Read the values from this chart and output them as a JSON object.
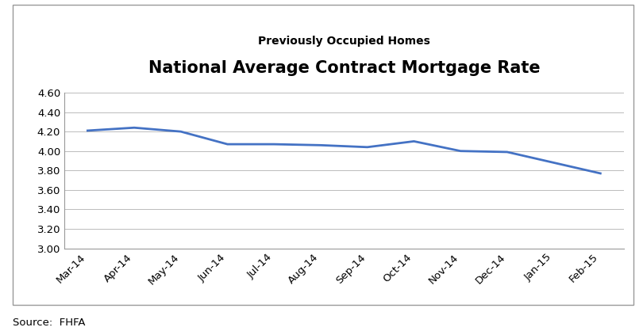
{
  "title": "National Average Contract Mortgage Rate",
  "subtitle": "Previously Occupied Homes",
  "source": "Source:  FHFA",
  "categories": [
    "Mar-14",
    "Apr-14",
    "May-14",
    "Jun-14",
    "Jul-14",
    "Aug-14",
    "Sep-14",
    "Oct-14",
    "Nov-14",
    "Dec-14",
    "Jan-15",
    "Feb-15"
  ],
  "values": [
    4.21,
    4.24,
    4.2,
    4.07,
    4.07,
    4.06,
    4.04,
    4.1,
    4.0,
    3.99,
    3.88,
    3.77
  ],
  "line_color": "#4472C4",
  "line_width": 2.0,
  "ylim": [
    3.0,
    4.6
  ],
  "yticks": [
    3.0,
    3.2,
    3.4,
    3.6,
    3.8,
    4.0,
    4.2,
    4.4,
    4.6
  ],
  "title_fontsize": 15,
  "subtitle_fontsize": 10,
  "tick_fontsize": 9.5,
  "source_fontsize": 9.5,
  "background_color": "#ffffff",
  "grid_color": "#bbbbbb",
  "title_fontweight": "bold",
  "subtitle_fontweight": "bold",
  "border_color": "#999999"
}
